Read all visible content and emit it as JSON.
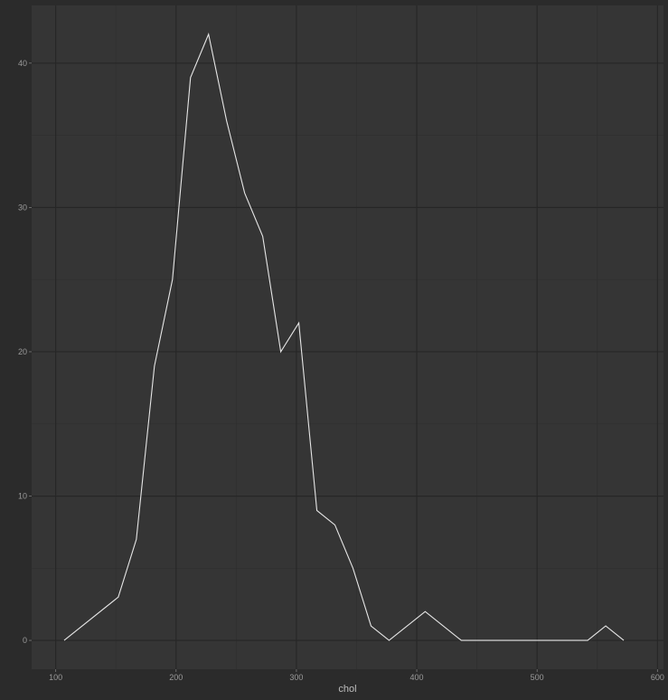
{
  "chart_data": {
    "type": "line",
    "title": "",
    "xlabel": "chol",
    "ylabel": "",
    "xlim": [
      80,
      605
    ],
    "ylim": [
      -2,
      44
    ],
    "x_ticks": [
      100,
      200,
      300,
      400,
      500,
      600
    ],
    "y_ticks": [
      0,
      10,
      20,
      30,
      40
    ],
    "x_minor_ticks": [
      150,
      250,
      350,
      450,
      550
    ],
    "y_minor_ticks": [
      5,
      15,
      25,
      35
    ],
    "grid": true,
    "legend": "none",
    "series": [
      {
        "color": "#e6e6e6",
        "points": [
          [
            107,
            0
          ],
          [
            152,
            3
          ],
          [
            167,
            7
          ],
          [
            182,
            19
          ],
          [
            197,
            25
          ],
          [
            212,
            39
          ],
          [
            227,
            42
          ],
          [
            242,
            36
          ],
          [
            257,
            31
          ],
          [
            272,
            28
          ],
          [
            287,
            20
          ],
          [
            302,
            22
          ],
          [
            317,
            9
          ],
          [
            332,
            8
          ],
          [
            347,
            5
          ],
          [
            362,
            1
          ],
          [
            377,
            0
          ],
          [
            407,
            2
          ],
          [
            437,
            0
          ],
          [
            542,
            0
          ],
          [
            557,
            1
          ],
          [
            572,
            0
          ]
        ]
      }
    ]
  },
  "colors": {
    "page_background": "#2b2b2b",
    "panel_background": "#353535",
    "grid_major": "#262626",
    "grid_minor": "#2e2e2e",
    "line": "#e6e6e6"
  }
}
